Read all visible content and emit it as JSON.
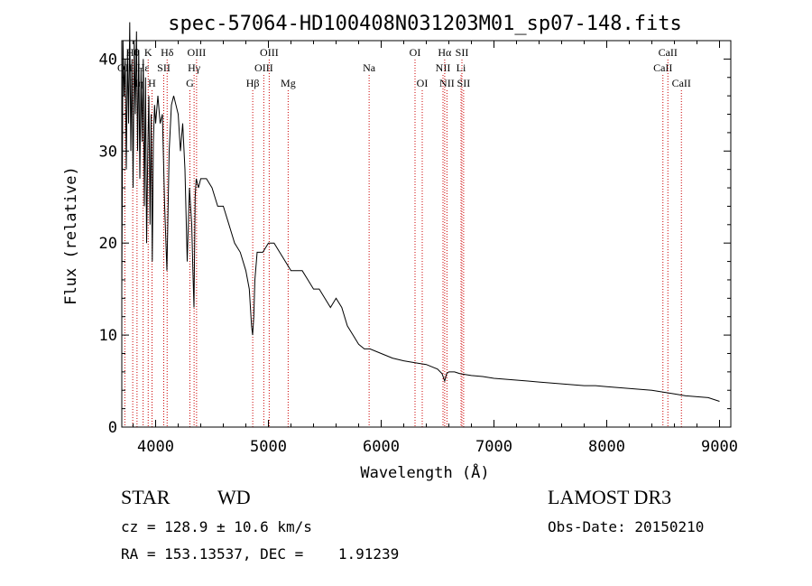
{
  "chart_data": {
    "type": "line",
    "title": "spec-57064-HD100408N031203M01_sp07-148.fits",
    "xlabel": "Wavelength (Å)",
    "ylabel": "Flux (relative)",
    "xlim": [
      3700,
      9100
    ],
    "ylim": [
      0,
      42
    ],
    "x_ticks": [
      4000,
      5000,
      6000,
      7000,
      8000,
      9000
    ],
    "x_tick_labels": [
      "4000",
      "5000",
      "6000",
      "7000",
      "8000",
      "9000"
    ],
    "y_ticks": [
      0,
      10,
      20,
      30,
      40
    ],
    "y_tick_labels": [
      "0",
      "10",
      "20",
      "30",
      "40"
    ],
    "series": [
      {
        "name": "spectrum",
        "x": [
          3700,
          3710,
          3720,
          3730,
          3740,
          3750,
          3760,
          3770,
          3780,
          3790,
          3800,
          3810,
          3820,
          3830,
          3840,
          3850,
          3860,
          3870,
          3880,
          3890,
          3900,
          3910,
          3920,
          3930,
          3940,
          3950,
          3960,
          3970,
          3980,
          3990,
          4000,
          4020,
          4040,
          4060,
          4080,
          4100,
          4120,
          4140,
          4160,
          4180,
          4200,
          4220,
          4240,
          4260,
          4280,
          4300,
          4320,
          4330,
          4340,
          4350,
          4360,
          4380,
          4400,
          4450,
          4500,
          4550,
          4600,
          4650,
          4700,
          4750,
          4800,
          4830,
          4850,
          4860,
          4870,
          4880,
          4900,
          4950,
          5000,
          5050,
          5100,
          5150,
          5200,
          5250,
          5300,
          5350,
          5400,
          5450,
          5500,
          5550,
          5600,
          5650,
          5700,
          5750,
          5800,
          5850,
          5900,
          6000,
          6100,
          6200,
          6300,
          6400,
          6500,
          6540,
          6563,
          6580,
          6600,
          6650,
          6700,
          6800,
          6900,
          7000,
          7100,
          7200,
          7300,
          7400,
          7500,
          7600,
          7700,
          7800,
          7900,
          8000,
          8100,
          8200,
          8300,
          8400,
          8500,
          8600,
          8700,
          8800,
          8900,
          9000
        ],
        "y": [
          15,
          42,
          36,
          40,
          28,
          41,
          33,
          44,
          30,
          40,
          26,
          42,
          34,
          43,
          30,
          41,
          27,
          39,
          31,
          40,
          24,
          38,
          20,
          30,
          36,
          22,
          34,
          18,
          31,
          35,
          33,
          36,
          33,
          34,
          24,
          17,
          30,
          35,
          36,
          35,
          34,
          30,
          33,
          28,
          18,
          26,
          22,
          17,
          13,
          25,
          27,
          26,
          27,
          27,
          26,
          24,
          24,
          22,
          20,
          19,
          17,
          15,
          11,
          10,
          12,
          16,
          19,
          19,
          20,
          20,
          19,
          18,
          17,
          17,
          17,
          16,
          15,
          15,
          14,
          13,
          14,
          13,
          11,
          10,
          9,
          8.5,
          8.5,
          8,
          7.5,
          7.2,
          7,
          6.8,
          6.3,
          5.8,
          5.0,
          5.8,
          6.0,
          6.0,
          5.8,
          5.6,
          5.5,
          5.3,
          5.2,
          5.1,
          5.0,
          4.9,
          4.8,
          4.7,
          4.6,
          4.5,
          4.5,
          4.4,
          4.3,
          4.2,
          4.1,
          4.0,
          3.8,
          3.6,
          3.4,
          3.3,
          3.2,
          2.8
        ]
      }
    ],
    "line_markers": [
      {
        "label": "Hθ",
        "x": 3797,
        "row": 1
      },
      {
        "label": "OII",
        "x": 3727,
        "row": 2
      },
      {
        "label": "Hη",
        "x": 3835,
        "row": 3
      },
      {
        "label": "Hε",
        "x": 3889,
        "row": 2
      },
      {
        "label": "K",
        "x": 3934,
        "row": 1
      },
      {
        "label": "H",
        "x": 3968,
        "row": 3
      },
      {
        "label": "SII",
        "x": 4072,
        "row": 2
      },
      {
        "label": "Hδ",
        "x": 4102,
        "row": 1
      },
      {
        "label": "G",
        "x": 4304,
        "row": 3
      },
      {
        "label": "Hγ",
        "x": 4341,
        "row": 2
      },
      {
        "label": "OIII",
        "x": 4363,
        "row": 1
      },
      {
        "label": "Hβ",
        "x": 4861,
        "row": 3
      },
      {
        "label": "OIII",
        "x": 4959,
        "row": 2
      },
      {
        "label": "OIII",
        "x": 5007,
        "row": 1
      },
      {
        "label": "Mg",
        "x": 5175,
        "row": 3
      },
      {
        "label": "Na",
        "x": 5893,
        "row": 2
      },
      {
        "label": "OI",
        "x": 6300,
        "row": 1
      },
      {
        "label": "OI",
        "x": 6364,
        "row": 3
      },
      {
        "label": "NII",
        "x": 6548,
        "row": 2
      },
      {
        "label": "Hα",
        "x": 6563,
        "row": 1
      },
      {
        "label": "NII",
        "x": 6583,
        "row": 3
      },
      {
        "label": "Li",
        "x": 6708,
        "row": 2
      },
      {
        "label": "SII",
        "x": 6716,
        "row": 1
      },
      {
        "label": "SII",
        "x": 6731,
        "row": 3
      },
      {
        "label": "CaII",
        "x": 8498,
        "row": 2
      },
      {
        "label": "CaII",
        "x": 8542,
        "row": 1
      },
      {
        "label": "CaII",
        "x": 8662,
        "row": 3
      }
    ]
  },
  "info": {
    "class_label": "STAR",
    "subclass_label": "WD",
    "survey": "LAMOST DR3",
    "cz": "cz = 128.9 ± 10.6 km/s",
    "obs_date": "Obs-Date: 20150210",
    "coords": "RA = 153.13537, DEC =    1.91239"
  }
}
